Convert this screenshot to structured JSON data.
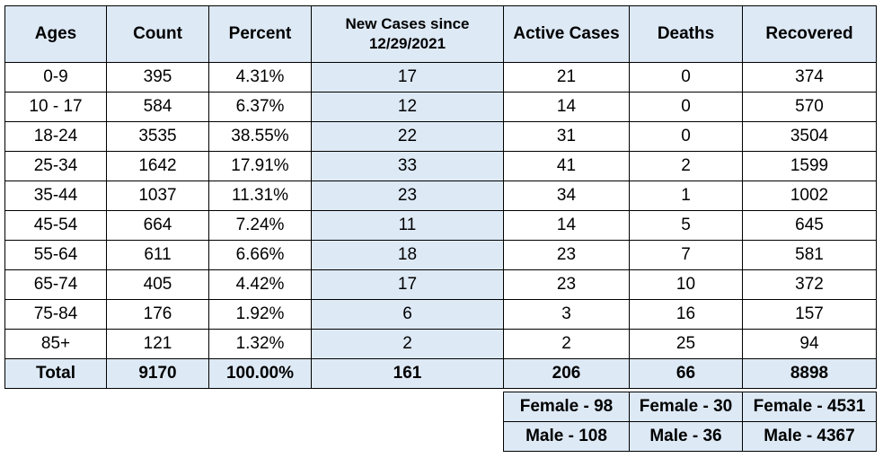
{
  "table": {
    "headers": [
      "Ages",
      "Count",
      "Percent",
      "New Cases since 12/29/2021",
      "Active Cases",
      "Deaths",
      "Recovered"
    ],
    "rows": [
      [
        "0-9",
        "395",
        "4.31%",
        "17",
        "21",
        "0",
        "374"
      ],
      [
        "10 - 17",
        "584",
        "6.37%",
        "12",
        "14",
        "0",
        "570"
      ],
      [
        "18-24",
        "3535",
        "38.55%",
        "22",
        "31",
        "0",
        "3504"
      ],
      [
        "25-34",
        "1642",
        "17.91%",
        "33",
        "41",
        "2",
        "1599"
      ],
      [
        "35-44",
        "1037",
        "11.31%",
        "23",
        "34",
        "1",
        "1002"
      ],
      [
        "45-54",
        "664",
        "7.24%",
        "11",
        "14",
        "5",
        "645"
      ],
      [
        "55-64",
        "611",
        "6.66%",
        "18",
        "23",
        "7",
        "581"
      ],
      [
        "65-74",
        "405",
        "4.42%",
        "17",
        "23",
        "10",
        "372"
      ],
      [
        "75-84",
        "176",
        "1.92%",
        "6",
        "3",
        "16",
        "157"
      ],
      [
        "85+",
        "121",
        "1.32%",
        "2",
        "2",
        "25",
        "94"
      ]
    ],
    "total": [
      "Total",
      "9170",
      "100.00%",
      "161",
      "206",
      "66",
      "8898"
    ]
  },
  "breakdown": {
    "female": [
      "Female - 98",
      "Female - 30",
      "Female - 4531"
    ],
    "male": [
      "Male - 108",
      "Male - 36",
      "Male - 4367"
    ]
  },
  "colors": {
    "highlight": "#dde9f5",
    "border": "#000000"
  }
}
